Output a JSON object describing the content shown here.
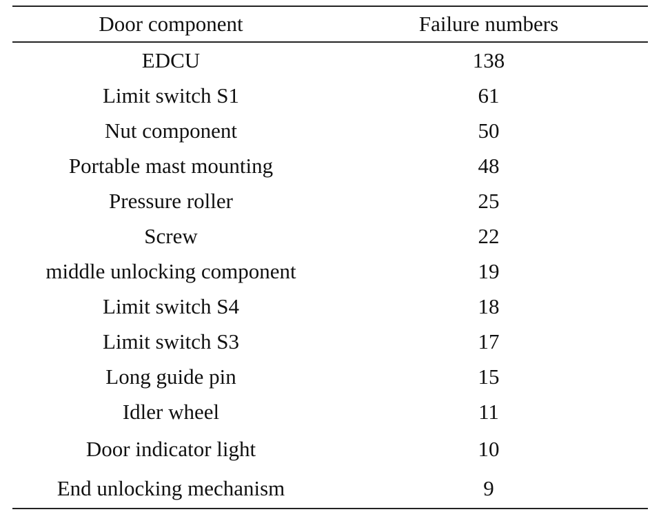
{
  "table": {
    "headers": [
      "Door component",
      "Failure numbers"
    ],
    "rows": [
      [
        "EDCU",
        "138"
      ],
      [
        "Limit switch S1",
        "61"
      ],
      [
        "Nut component",
        "50"
      ],
      [
        "Portable mast mounting",
        "48"
      ],
      [
        "Pressure roller",
        "25"
      ],
      [
        "Screw",
        "22"
      ],
      [
        "middle unlocking component",
        "19"
      ],
      [
        "Limit switch S4",
        "18"
      ],
      [
        "Limit switch S3",
        "17"
      ],
      [
        "Long guide pin",
        "15"
      ],
      [
        "Idler wheel",
        "11"
      ],
      [
        "Door indicator light",
        "10"
      ],
      [
        "End unlocking mechanism",
        "9"
      ]
    ]
  }
}
